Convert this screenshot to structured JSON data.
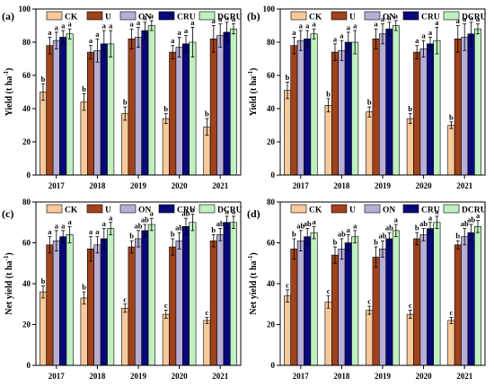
{
  "chart_data": [
    {
      "type": "bar",
      "panel": "(a)",
      "ylabel": "Yield (t ha-1)",
      "ylim": [
        0,
        100
      ],
      "yticks": [
        0,
        20,
        40,
        60,
        80,
        100
      ],
      "categories": [
        "2017",
        "2018",
        "2019",
        "2020",
        "2021"
      ],
      "legend": "top",
      "series": [
        {
          "name": "CK",
          "values": [
            50,
            44,
            37,
            34,
            29
          ],
          "errors": [
            5,
            5,
            4,
            3,
            5
          ],
          "letters": [
            "b",
            "b",
            "b",
            "b",
            "b"
          ]
        },
        {
          "name": "U",
          "values": [
            78,
            74,
            82,
            74,
            82
          ],
          "errors": [
            5,
            4,
            6,
            4,
            8
          ],
          "letters": [
            "a",
            "a",
            "a",
            "a",
            "a"
          ]
        },
        {
          "name": "ON",
          "values": [
            81,
            75,
            83,
            77,
            84
          ],
          "errors": [
            5,
            7,
            6,
            6,
            7
          ],
          "letters": [
            "a",
            "a",
            "a",
            "a",
            "a"
          ]
        },
        {
          "name": "CRU",
          "values": [
            83,
            79,
            87,
            79,
            86
          ],
          "errors": [
            4,
            8,
            5,
            5,
            6
          ],
          "letters": [
            "a",
            "a",
            "a",
            "a",
            "a"
          ]
        },
        {
          "name": "DCRU",
          "values": [
            85,
            79,
            90,
            80,
            88
          ],
          "errors": [
            3,
            8,
            3,
            9,
            3
          ],
          "letters": [
            "a",
            "a",
            "a",
            "a",
            "a"
          ]
        }
      ]
    },
    {
      "type": "bar",
      "panel": "(b)",
      "ylabel": "Yield (t ha-1)",
      "ylim": [
        0,
        100
      ],
      "yticks": [
        0,
        20,
        40,
        60,
        80,
        100
      ],
      "categories": [
        "2017",
        "2018",
        "2019",
        "2020",
        "2021"
      ],
      "legend": "top",
      "series": [
        {
          "name": "CK",
          "values": [
            51,
            42,
            38,
            34,
            30
          ],
          "errors": [
            5,
            4,
            3,
            3,
            2
          ],
          "letters": [
            "b",
            "b",
            "b",
            "b",
            "b"
          ]
        },
        {
          "name": "U",
          "values": [
            78,
            74,
            82,
            74,
            82
          ],
          "errors": [
            5,
            5,
            6,
            4,
            8
          ],
          "letters": [
            "a",
            "a",
            "a",
            "a",
            "a"
          ]
        },
        {
          "name": "ON",
          "values": [
            81,
            75,
            85,
            76,
            83
          ],
          "errors": [
            6,
            6,
            6,
            5,
            8
          ],
          "letters": [
            "a",
            "a",
            "a",
            "a",
            "a"
          ]
        },
        {
          "name": "CRU",
          "values": [
            82,
            80,
            88,
            79,
            85
          ],
          "errors": [
            5,
            6,
            4,
            4,
            7
          ],
          "letters": [
            "a",
            "a",
            "a",
            "a",
            "a"
          ]
        },
        {
          "name": "DCRU",
          "values": [
            85,
            80,
            90,
            81,
            88
          ],
          "errors": [
            3,
            7,
            3,
            8,
            3
          ],
          "letters": [
            "a",
            "a",
            "a",
            "a",
            "a"
          ]
        }
      ]
    },
    {
      "type": "bar",
      "panel": "(c)",
      "ylabel": "Net  yield (t ha-1)",
      "ylim": [
        0,
        80
      ],
      "yticks": [
        0,
        20,
        40,
        60,
        80
      ],
      "categories": [
        "2017",
        "2018",
        "2019",
        "2020",
        "2021"
      ],
      "legend": "top",
      "series": [
        {
          "name": "CK",
          "values": [
            36,
            33,
            28,
            25,
            22
          ],
          "errors": [
            3,
            3,
            2,
            2,
            1.5
          ],
          "letters": [
            "b",
            "b",
            "c",
            "c",
            "c"
          ]
        },
        {
          "name": "U",
          "values": [
            59,
            57,
            58,
            58,
            61
          ],
          "errors": [
            4,
            6,
            3,
            4,
            3
          ],
          "letters": [
            "a",
            "a",
            "b",
            "b",
            "b"
          ]
        },
        {
          "name": "ON",
          "values": [
            61,
            59,
            62,
            61,
            64
          ],
          "errors": [
            5,
            4,
            4,
            4,
            3
          ],
          "letters": [
            "a",
            "a",
            "ab",
            "ab",
            "ab"
          ]
        },
        {
          "name": "CRU",
          "values": [
            63,
            62,
            66,
            68,
            70
          ],
          "errors": [
            3,
            5,
            3,
            4,
            3
          ],
          "letters": [
            "a",
            "a",
            "ab",
            "ab",
            "a"
          ]
        },
        {
          "name": "DCRU",
          "values": [
            64,
            67,
            69,
            70,
            70
          ],
          "errors": [
            4,
            3,
            3,
            4,
            3
          ],
          "letters": [
            "a",
            "a",
            "a",
            "a",
            "a"
          ]
        }
      ]
    },
    {
      "type": "bar",
      "panel": "(d)",
      "ylabel": "Net  yield (t ha-1)",
      "ylim": [
        0,
        80
      ],
      "yticks": [
        0,
        20,
        40,
        60,
        80
      ],
      "categories": [
        "2017",
        "2018",
        "2019",
        "2020",
        "2021"
      ],
      "legend": "top",
      "series": [
        {
          "name": "CK",
          "values": [
            34,
            31,
            27,
            25,
            22
          ],
          "errors": [
            3,
            3,
            2,
            2,
            1.5
          ],
          "letters": [
            "c",
            "c",
            "c",
            "c",
            "c"
          ]
        },
        {
          "name": "U",
          "values": [
            57,
            54,
            53,
            62,
            59
          ],
          "errors": [
            5,
            4,
            5,
            3,
            2
          ],
          "letters": [
            "b",
            "b",
            "b",
            "b",
            "b"
          ]
        },
        {
          "name": "ON",
          "values": [
            61,
            57,
            57,
            64,
            63
          ],
          "errors": [
            5,
            5,
            4,
            3,
            4
          ],
          "letters": [
            "ab",
            "ab",
            "ab",
            "ab",
            "ab"
          ]
        },
        {
          "name": "CRU",
          "values": [
            63,
            60,
            62,
            67,
            65
          ],
          "errors": [
            4,
            4,
            3,
            3,
            4
          ],
          "letters": [
            "ab",
            "a",
            "ab",
            "a",
            "ab"
          ]
        },
        {
          "name": "DCRU",
          "values": [
            65,
            63,
            66,
            70,
            68
          ],
          "errors": [
            3,
            3,
            3,
            3,
            3
          ],
          "letters": [
            "a",
            "a",
            "a",
            "a",
            "a"
          ]
        }
      ]
    }
  ],
  "colors": {
    "CK": "#f7c99b",
    "U": "#a0421c",
    "ON": "#b7aed6",
    "CRU": "#08087a",
    "DCRU": "#bff0c0",
    "axis": "#000000",
    "text": "#000000"
  }
}
